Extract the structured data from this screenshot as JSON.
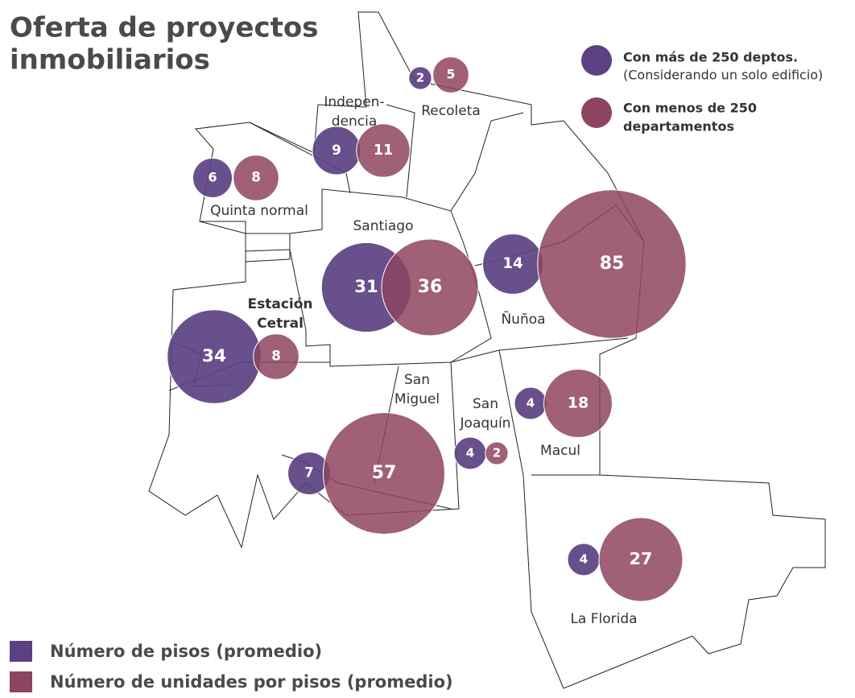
{
  "title": [
    "Oferta de proyectos",
    "inmobiliarios"
  ],
  "legend_top": [
    {
      "lines": [
        "Con más de 250 deptos.",
        "(Considerando un solo edificio)"
      ]
    },
    {
      "lines": [
        "Con menos de 250",
        "departamentos"
      ]
    }
  ],
  "legend_bottom": [
    "Número de pisos (promedio)",
    "Número de unidades por pisos (promedio)"
  ],
  "colors": {
    "pisos": "#5b4182",
    "unidades": "#8e4460"
  },
  "districts": [
    {
      "label": [
        "Recoleta"
      ],
      "bold": false,
      "pisos": 2,
      "unidades": 5
    },
    {
      "label": [
        "Indepen-",
        "dencia"
      ],
      "bold": false,
      "pisos": 9,
      "unidades": 11
    },
    {
      "label": [
        "Quinta normal"
      ],
      "bold": false,
      "pisos": 6,
      "unidades": 8
    },
    {
      "label": [
        "Santiago"
      ],
      "bold": false,
      "pisos": 31,
      "unidades": 36
    },
    {
      "label": [
        "Ñuñoa"
      ],
      "bold": false,
      "pisos": 14,
      "unidades": 85
    },
    {
      "label": [
        "Estación",
        "Cetral"
      ],
      "bold": true,
      "pisos": 34,
      "unidades": 8
    },
    {
      "label": [
        "San",
        "Miguel"
      ],
      "bold": false,
      "pisos": 7,
      "unidades": 57
    },
    {
      "label": [
        "San",
        "Joaquín"
      ],
      "bold": false,
      "pisos": 4,
      "unidades": 2
    },
    {
      "label": [
        "Macul"
      ],
      "bold": false,
      "pisos": 4,
      "unidades": 18
    },
    {
      "label": [
        "La Florida"
      ],
      "bold": false,
      "pisos": 4,
      "unidades": 27
    }
  ]
}
